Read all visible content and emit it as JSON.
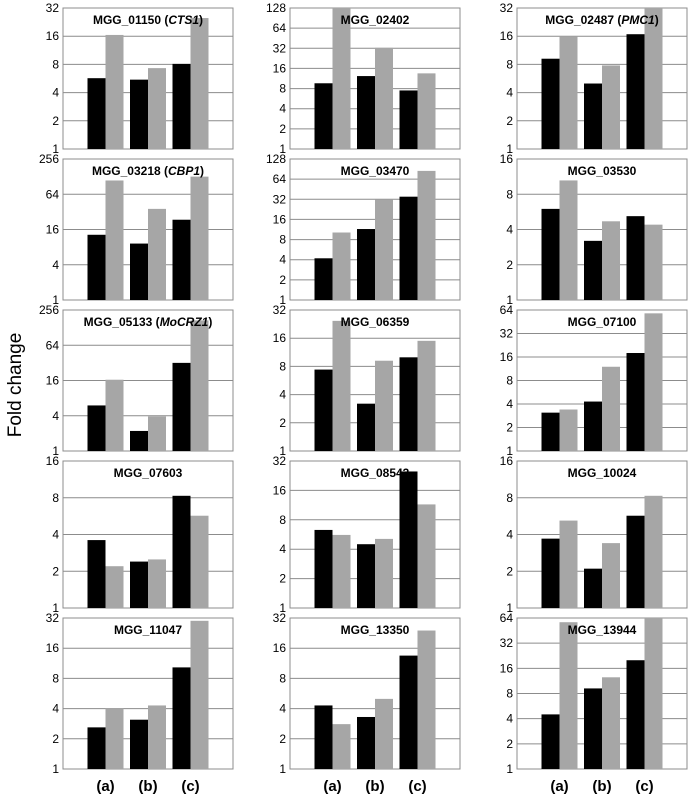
{
  "figure": {
    "ylabel": "Fold change",
    "categories": [
      "(a)",
      "(b)",
      "(c)"
    ],
    "colors": {
      "dark": "#000000",
      "light": "#a6a6a6",
      "grid": "#8c8c8c",
      "frame": "#8c8c8c"
    }
  },
  "chart_data": [
    {
      "type": "bar",
      "title": "MGG_01150 (CTS1)",
      "title_parts": [
        {
          "t": "MGG_01150 (",
          "i": false
        },
        {
          "t": "CTS1",
          "i": true
        },
        {
          "t": ")",
          "i": false
        }
      ],
      "yscale": "log2",
      "ylim": [
        1,
        32
      ],
      "yticks": [
        "1",
        "2",
        "4",
        "8",
        "16",
        "32"
      ],
      "categories": [
        "(a)",
        "(b)",
        "(c)"
      ],
      "series": [
        {
          "values": [
            5.7,
            5.5,
            8.1
          ]
        },
        {
          "values": [
            16.5,
            7.3,
            25
          ]
        }
      ]
    },
    {
      "type": "bar",
      "title": "MGG_02402",
      "title_parts": [
        {
          "t": "MGG_02402",
          "i": false
        }
      ],
      "yscale": "log2",
      "ylim": [
        1,
        128
      ],
      "yticks": [
        "1",
        "2",
        "4",
        "8",
        "16",
        "32",
        "64",
        "128"
      ],
      "categories": [
        "(a)",
        "(b)",
        "(c)"
      ],
      "series": [
        {
          "values": [
            9.6,
            12.3,
            7.5
          ]
        },
        {
          "values": [
            128,
            32.5,
            13.5
          ]
        }
      ]
    },
    {
      "type": "bar",
      "title": "MGG_02487 (PMC1)",
      "title_parts": [
        {
          "t": "MGG_02487 (",
          "i": false
        },
        {
          "t": "PMC1",
          "i": true
        },
        {
          "t": ")",
          "i": false
        }
      ],
      "yscale": "log2",
      "ylim": [
        1,
        32
      ],
      "yticks": [
        "1",
        "2",
        "4",
        "8",
        "16",
        "32"
      ],
      "categories": [
        "(a)",
        "(b)",
        "(c)"
      ],
      "series": [
        {
          "values": [
            9.2,
            5.0,
            16.8
          ]
        },
        {
          "values": [
            15.8,
            7.8,
            32
          ]
        }
      ]
    },
    {
      "type": "bar",
      "title": "MGG_03218 (CBP1)",
      "title_parts": [
        {
          "t": "MGG_03218 (",
          "i": false
        },
        {
          "t": "CBP1",
          "i": true
        },
        {
          "t": ")",
          "i": false
        }
      ],
      "yscale": "log2",
      "ylim": [
        1,
        256
      ],
      "yticks": [
        "1",
        "4",
        "16",
        "64",
        "256"
      ],
      "categories": [
        "(a)",
        "(b)",
        "(c)"
      ],
      "series": [
        {
          "values": [
            13,
            9.2,
            23.5
          ]
        },
        {
          "values": [
            110,
            36,
            128
          ]
        }
      ]
    },
    {
      "type": "bar",
      "title": "MGG_03470",
      "title_parts": [
        {
          "t": "MGG_03470",
          "i": false
        }
      ],
      "yscale": "log2",
      "ylim": [
        1,
        128
      ],
      "yticks": [
        "1",
        "2",
        "4",
        "8",
        "16",
        "32",
        "64",
        "128"
      ],
      "categories": [
        "(a)",
        "(b)",
        "(c)"
      ],
      "series": [
        {
          "values": [
            4.2,
            11.5,
            35
          ]
        },
        {
          "values": [
            10.2,
            32,
            85
          ]
        }
      ]
    },
    {
      "type": "bar",
      "title": "MGG_03530",
      "title_parts": [
        {
          "t": "MGG_03530",
          "i": false
        }
      ],
      "yscale": "log2",
      "ylim": [
        1,
        16
      ],
      "yticks": [
        "1",
        "2",
        "4",
        "8",
        "16"
      ],
      "categories": [
        "(a)",
        "(b)",
        "(c)"
      ],
      "series": [
        {
          "values": [
            6.0,
            3.2,
            5.2
          ]
        },
        {
          "values": [
            10.5,
            4.7,
            4.4
          ]
        }
      ]
    },
    {
      "type": "bar",
      "title": "MGG_05133 (MoCRZ1)",
      "title_parts": [
        {
          "t": "MGG_05133 (",
          "i": false
        },
        {
          "t": "MoCRZ1",
          "i": true
        },
        {
          "t": ")",
          "i": false
        }
      ],
      "yscale": "log2",
      "ylim": [
        1,
        256
      ],
      "yticks": [
        "1",
        "4",
        "16",
        "64",
        "256"
      ],
      "categories": [
        "(a)",
        "(b)",
        "(c)"
      ],
      "series": [
        {
          "values": [
            6.0,
            2.2,
            32
          ]
        },
        {
          "values": [
            16.5,
            3.9,
            170
          ]
        }
      ]
    },
    {
      "type": "bar",
      "title": "MGG_06359",
      "title_parts": [
        {
          "t": "MGG_06359",
          "i": false
        }
      ],
      "yscale": "log2",
      "ylim": [
        1,
        32
      ],
      "yticks": [
        "1",
        "2",
        "4",
        "8",
        "16",
        "32"
      ],
      "categories": [
        "(a)",
        "(b)",
        "(c)"
      ],
      "series": [
        {
          "values": [
            7.4,
            3.2,
            10
          ]
        },
        {
          "values": [
            24.5,
            9.2,
            15
          ]
        }
      ]
    },
    {
      "type": "bar",
      "title": "MGG_07100",
      "title_parts": [
        {
          "t": "MGG_07100",
          "i": false
        }
      ],
      "yscale": "log2",
      "ylim": [
        1,
        64
      ],
      "yticks": [
        "1",
        "2",
        "4",
        "8",
        "16",
        "32",
        "64"
      ],
      "categories": [
        "(a)",
        "(b)",
        "(c)"
      ],
      "series": [
        {
          "values": [
            3.1,
            4.3,
            18
          ]
        },
        {
          "values": [
            3.4,
            12,
            58
          ]
        }
      ]
    },
    {
      "type": "bar",
      "title": "MGG_07603",
      "title_parts": [
        {
          "t": "MGG_07603",
          "i": false
        }
      ],
      "yscale": "log2",
      "ylim": [
        1,
        16
      ],
      "yticks": [
        "1",
        "2",
        "4",
        "8",
        "16"
      ],
      "categories": [
        "(a)",
        "(b)",
        "(c)"
      ],
      "series": [
        {
          "values": [
            3.6,
            2.4,
            8.3
          ]
        },
        {
          "values": [
            2.2,
            2.5,
            5.7
          ]
        }
      ]
    },
    {
      "type": "bar",
      "title": "MGG_08543",
      "title_parts": [
        {
          "t": "MGG_08543",
          "i": false
        }
      ],
      "yscale": "log2",
      "ylim": [
        1,
        32
      ],
      "yticks": [
        "1",
        "2",
        "4",
        "8",
        "16",
        "32"
      ],
      "categories": [
        "(a)",
        "(b)",
        "(c)"
      ],
      "series": [
        {
          "values": [
            6.3,
            4.5,
            25
          ]
        },
        {
          "values": [
            5.6,
            5.1,
            11.5
          ]
        }
      ]
    },
    {
      "type": "bar",
      "title": "MGG_10024",
      "title_parts": [
        {
          "t": "MGG_10024",
          "i": false
        }
      ],
      "yscale": "log2",
      "ylim": [
        1,
        16
      ],
      "yticks": [
        "1",
        "2",
        "4",
        "8",
        "16"
      ],
      "categories": [
        "(a)",
        "(b)",
        "(c)"
      ],
      "series": [
        {
          "values": [
            3.7,
            2.1,
            5.7
          ]
        },
        {
          "values": [
            5.2,
            3.4,
            8.3
          ]
        }
      ]
    },
    {
      "type": "bar",
      "title": "MGG_11047",
      "title_parts": [
        {
          "t": "MGG_11047",
          "i": false
        }
      ],
      "yscale": "log2",
      "ylim": [
        1,
        32
      ],
      "yticks": [
        "1",
        "2",
        "4",
        "8",
        "16",
        "32"
      ],
      "categories": [
        "(a)",
        "(b)",
        "(c)"
      ],
      "series": [
        {
          "values": [
            2.6,
            3.1,
            10.3
          ]
        },
        {
          "values": [
            4.0,
            4.3,
            30
          ]
        }
      ]
    },
    {
      "type": "bar",
      "title": "MGG_13350",
      "title_parts": [
        {
          "t": "MGG_13350",
          "i": false
        }
      ],
      "yscale": "log2",
      "ylim": [
        1,
        32
      ],
      "yticks": [
        "1",
        "2",
        "4",
        "8",
        "16",
        "32"
      ],
      "categories": [
        "(a)",
        "(b)",
        "(c)"
      ],
      "series": [
        {
          "values": [
            4.3,
            3.3,
            13.5
          ]
        },
        {
          "values": [
            2.8,
            5.0,
            24
          ]
        }
      ]
    },
    {
      "type": "bar",
      "title": "MGG_13944",
      "title_parts": [
        {
          "t": "MGG_13944",
          "i": false
        }
      ],
      "yscale": "log2",
      "ylim": [
        1,
        64
      ],
      "yticks": [
        "1",
        "2",
        "4",
        "8",
        "16",
        "32",
        "64"
      ],
      "categories": [
        "(a)",
        "(b)",
        "(c)"
      ],
      "series": [
        {
          "values": [
            4.5,
            9.2,
            20
          ]
        },
        {
          "values": [
            57,
            12.5,
            64
          ]
        }
      ]
    }
  ]
}
